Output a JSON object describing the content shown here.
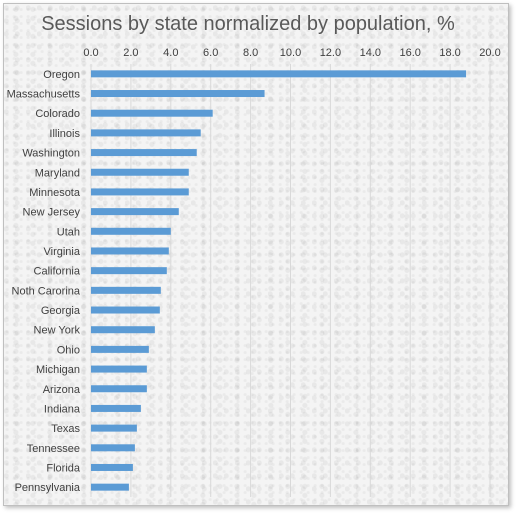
{
  "chart_data": {
    "type": "bar",
    "orientation": "horizontal",
    "title": "Sessions by state normalized by population, %",
    "xlabel": "",
    "ylabel": "",
    "xlim": [
      0,
      20
    ],
    "tick_step": 2,
    "tick_labels": [
      "0.0",
      "2.0",
      "4.0",
      "6.0",
      "8.0",
      "10.0",
      "12.0",
      "14.0",
      "16.0",
      "18.0",
      "20.0"
    ],
    "axis_position": "top",
    "grid": true,
    "bar_color": "#5b9bd5",
    "categories": [
      "Oregon",
      "Massachusetts",
      "Colorado",
      "Illinois",
      "Washington",
      "Maryland",
      "Minnesota",
      "New Jersey",
      "Utah",
      "Virginia",
      "California",
      "Noth Carorina",
      "Georgia",
      "New York",
      "Ohio",
      "Michigan",
      "Arizona",
      "Indiana",
      "Texas",
      "Tennessee",
      "Florida",
      "Pennsylvania"
    ],
    "values": [
      18.8,
      8.7,
      6.1,
      5.5,
      5.3,
      4.9,
      4.9,
      4.4,
      4.0,
      3.9,
      3.8,
      3.5,
      3.45,
      3.2,
      2.9,
      2.8,
      2.8,
      2.5,
      2.3,
      2.2,
      2.1,
      1.9
    ]
  }
}
